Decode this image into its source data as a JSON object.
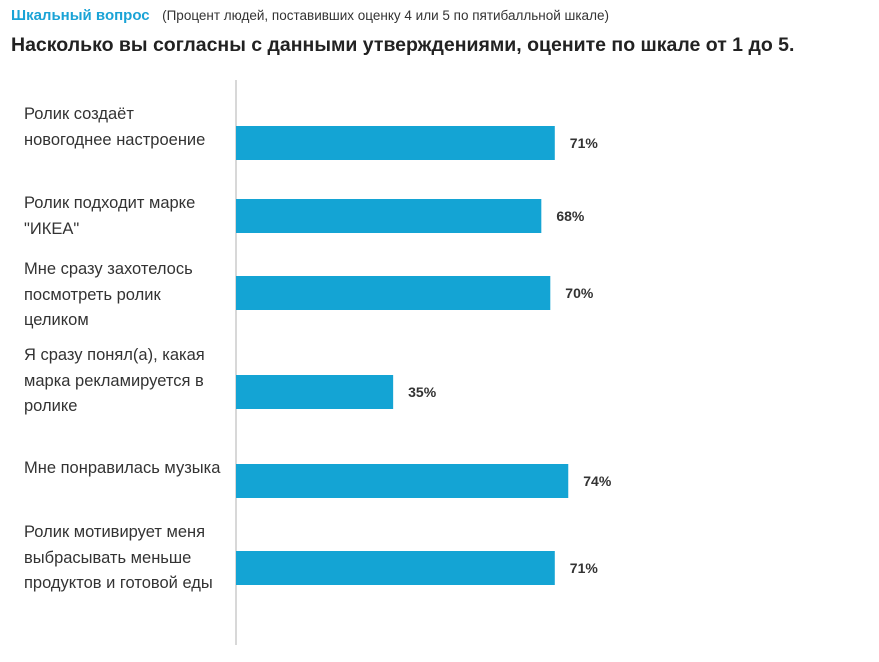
{
  "header": {
    "question_type": "Шкальный вопрос",
    "note": "(Процент людей, поставивших оценку 4 или 5 по пятибалльной шкале)",
    "question": "Насколько вы согласны с данными утверждениями, оцените по шкале от 1 до 5."
  },
  "colors": {
    "bar": "#14a4d4",
    "axis": "#cccccc",
    "accent": "#1aa3d6"
  },
  "chart_data": {
    "type": "bar",
    "orientation": "horizontal",
    "categories": [
      "Ролик создаёт новогоднее настроение",
      "Ролик подходит марке \"ИКЕА\"",
      "Мне сразу захотелось посмотреть ролик целиком",
      "Я сразу понял(а), какая марка рекламируется в ролике",
      "Мне понравилась музыка",
      "Ролик мотивирует меня выбрасывать меньше продуктов и готовой еды"
    ],
    "values": [
      71,
      68,
      70,
      35,
      74,
      71
    ],
    "value_labels": [
      "71%",
      "68%",
      "70%",
      "35%",
      "74%",
      "71%"
    ],
    "unit": "%",
    "xlim": [
      0,
      100
    ],
    "grid": false,
    "legend": "none"
  }
}
